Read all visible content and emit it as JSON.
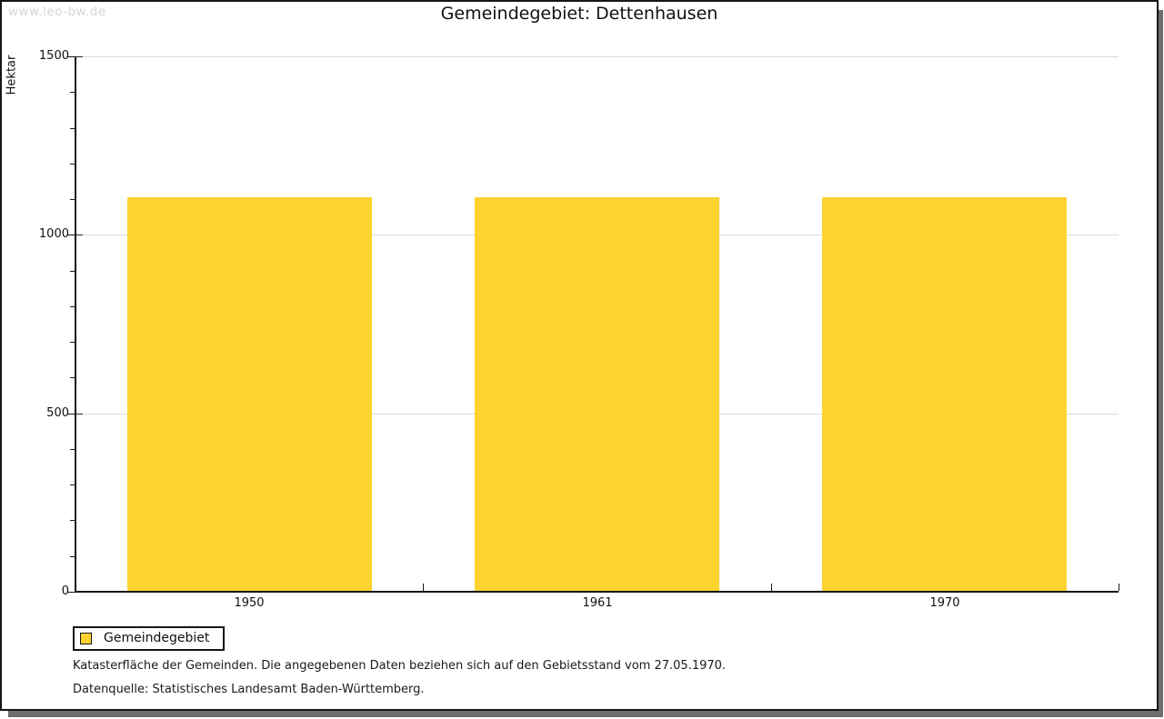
{
  "page": {
    "watermark": "www.leo-bw.de",
    "title": "Gemeindegebiet: Dettenhausen"
  },
  "chart_data": {
    "type": "bar",
    "title": "Gemeindegebiet: Dettenhausen",
    "xlabel": "",
    "ylabel": "Hektar",
    "categories": [
      "1950",
      "1961",
      "1970"
    ],
    "series": [
      {
        "name": "Gemeindegebiet",
        "color": "#fcd32f",
        "values": [
          1105,
          1105,
          1105
        ]
      }
    ],
    "ylim": [
      0,
      1500
    ],
    "ytick_major_step": 500,
    "ytick_minor_step": 100,
    "ytick_labels": [
      "0",
      "500",
      "1000",
      "1500"
    ],
    "grid": "horizontal-major",
    "legend_position": "bottom-left"
  },
  "legend": {
    "items": [
      {
        "label": "Gemeindegebiet",
        "swatch_color": "#fcd32f"
      }
    ]
  },
  "footnotes": {
    "line1": "Katasterfläche der Gemeinden. Die angegebenen Daten beziehen sich auf den Gebietsstand vom 27.05.1970.",
    "line2": "Datenquelle: Statistisches Landesamt Baden-Württemberg."
  },
  "colors": {
    "bar": "#fcd32f",
    "grid": "#dcdcdc",
    "axis": "#161616",
    "watermark": "#d5d5d5",
    "text": "#1a1a1a"
  }
}
